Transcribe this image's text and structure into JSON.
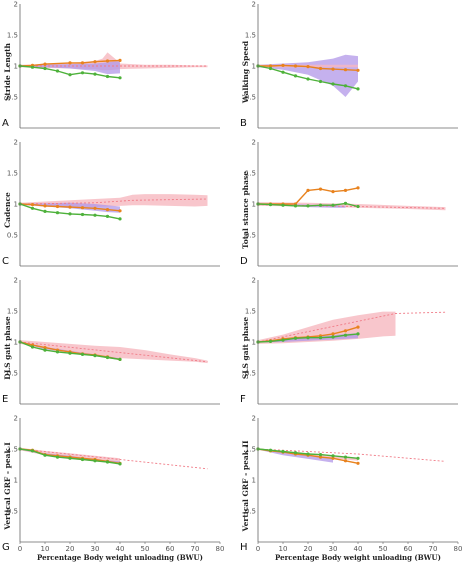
{
  "colors": {
    "orange": "#e8821e",
    "green": "#4db13a",
    "pink_band": "#f6b8bf",
    "purple_band": "#b197e8",
    "dashed": "#f07a86",
    "axis": "#666666"
  },
  "chart_data": [
    {
      "type": "line",
      "panel_label": "A",
      "ylabel": "Stride Length",
      "ylim": [
        0,
        2
      ],
      "xlim": [
        0,
        80
      ],
      "yticks": [
        "0",
        "0.5",
        "1",
        "1.5",
        "2"
      ],
      "xticks": [],
      "bands": [
        {
          "color": "pink",
          "x": [
            0,
            10,
            20,
            30,
            33,
            35,
            38,
            40,
            50,
            60,
            70,
            75
          ],
          "upper": [
            1.02,
            1.03,
            1.05,
            1.08,
            1.12,
            1.22,
            1.12,
            1.04,
            1.02,
            1.02,
            1.01,
            1.01
          ],
          "lower": [
            0.98,
            0.97,
            0.96,
            0.95,
            0.93,
            0.93,
            0.94,
            0.95,
            0.96,
            0.97,
            0.98,
            0.98
          ]
        },
        {
          "color": "purple",
          "x": [
            0,
            10,
            20,
            30,
            35,
            40
          ],
          "upper": [
            1.01,
            1.02,
            1.03,
            1.04,
            1.06,
            1.08
          ],
          "lower": [
            0.99,
            0.98,
            0.96,
            0.92,
            0.87,
            0.88
          ]
        }
      ],
      "series": [
        {
          "color": "orange",
          "x": [
            0,
            5,
            10,
            20,
            25,
            30,
            35,
            40
          ],
          "values": [
            1.0,
            1.01,
            1.03,
            1.05,
            1.05,
            1.07,
            1.08,
            1.09
          ]
        },
        {
          "color": "green",
          "x": [
            0,
            5,
            10,
            15,
            20,
            25,
            30,
            35,
            40
          ],
          "values": [
            1.0,
            0.98,
            0.96,
            0.92,
            0.86,
            0.89,
            0.87,
            0.83,
            0.81
          ]
        }
      ],
      "dashed": {
        "x": [
          0,
          75
        ],
        "values": [
          1.0,
          1.0
        ]
      }
    },
    {
      "type": "line",
      "panel_label": "B",
      "ylabel": "Walking Speed",
      "ylim": [
        0,
        2
      ],
      "xlim": [
        0,
        80
      ],
      "yticks": [
        "0",
        "0.5",
        "1",
        "1.5",
        "2"
      ],
      "xticks": [],
      "bands": [
        {
          "color": "purple",
          "x": [
            0,
            10,
            20,
            30,
            35,
            40
          ],
          "upper": [
            1.02,
            1.04,
            1.06,
            1.12,
            1.18,
            1.16
          ],
          "lower": [
            0.98,
            0.94,
            0.86,
            0.68,
            0.5,
            0.75
          ]
        },
        {
          "color": "pink",
          "x": [
            0,
            10,
            20,
            30,
            40
          ],
          "upper": [
            1.02,
            1.02,
            1.02,
            1.02,
            1.02
          ],
          "lower": [
            0.98,
            0.98,
            0.98,
            0.98,
            0.98
          ]
        }
      ],
      "series": [
        {
          "color": "orange",
          "x": [
            0,
            5,
            10,
            15,
            20,
            25,
            30,
            35,
            40
          ],
          "values": [
            1.0,
            1.0,
            1.01,
            1.0,
            0.99,
            0.96,
            0.95,
            0.94,
            0.93
          ]
        },
        {
          "color": "green",
          "x": [
            0,
            5,
            10,
            15,
            20,
            25,
            30,
            35,
            40
          ],
          "values": [
            1.0,
            0.96,
            0.9,
            0.84,
            0.79,
            0.75,
            0.71,
            0.68,
            0.63
          ]
        }
      ],
      "dashed": null
    },
    {
      "type": "line",
      "panel_label": "C",
      "ylabel": "Cadence",
      "ylim": [
        0,
        2
      ],
      "xlim": [
        0,
        80
      ],
      "yticks": [
        "0",
        "0.5",
        "1",
        "1.5",
        "2"
      ],
      "xticks": [],
      "bands": [
        {
          "color": "pink",
          "x": [
            0,
            10,
            20,
            30,
            40,
            45,
            50,
            60,
            70,
            75
          ],
          "upper": [
            1.02,
            1.04,
            1.06,
            1.08,
            1.1,
            1.15,
            1.16,
            1.16,
            1.15,
            1.14
          ],
          "lower": [
            0.98,
            0.96,
            0.95,
            0.95,
            0.97,
            0.98,
            0.98,
            0.97,
            0.96,
            0.97
          ]
        },
        {
          "color": "purple",
          "x": [
            0,
            10,
            20,
            30,
            35,
            40
          ],
          "upper": [
            1.01,
            1.01,
            1.02,
            1.0,
            0.98,
            0.96
          ],
          "lower": [
            0.99,
            0.96,
            0.93,
            0.89,
            0.87,
            0.86
          ]
        }
      ],
      "series": [
        {
          "color": "orange",
          "x": [
            0,
            5,
            10,
            15,
            20,
            25,
            30,
            35,
            40
          ],
          "values": [
            1.0,
            0.99,
            0.97,
            0.96,
            0.95,
            0.94,
            0.93,
            0.91,
            0.89
          ]
        },
        {
          "color": "green",
          "x": [
            0,
            5,
            10,
            15,
            20,
            25,
            30,
            35,
            40
          ],
          "values": [
            1.0,
            0.93,
            0.88,
            0.86,
            0.84,
            0.83,
            0.82,
            0.8,
            0.76
          ]
        }
      ],
      "dashed": {
        "x": [
          0,
          30,
          45,
          75
        ],
        "values": [
          1.0,
          1.02,
          1.06,
          1.08
        ]
      }
    },
    {
      "type": "line",
      "panel_label": "D",
      "ylabel": "Total stance phase",
      "ylim": [
        0,
        2
      ],
      "xlim": [
        0,
        80
      ],
      "yticks": [
        "0",
        "0.5",
        "1",
        "1.5",
        "2"
      ],
      "xticks": [],
      "bands": [
        {
          "color": "pink",
          "x": [
            0,
            20,
            40,
            60,
            75
          ],
          "upper": [
            1.03,
            1.02,
            1.0,
            0.97,
            0.95
          ],
          "lower": [
            0.97,
            0.96,
            0.94,
            0.92,
            0.9
          ]
        },
        {
          "color": "purple",
          "x": [
            0,
            10,
            20,
            30,
            35
          ],
          "upper": [
            1.01,
            1.0,
            0.99,
            0.98,
            0.97
          ],
          "lower": [
            0.99,
            0.98,
            0.95,
            0.94,
            0.94
          ]
        }
      ],
      "series": [
        {
          "color": "orange",
          "x": [
            0,
            5,
            10,
            15,
            20,
            25,
            30,
            35,
            40
          ],
          "values": [
            1.0,
            1.0,
            1.0,
            1.0,
            1.22,
            1.24,
            1.2,
            1.22,
            1.26
          ]
        },
        {
          "color": "green",
          "x": [
            0,
            5,
            10,
            15,
            20,
            25,
            30,
            35,
            40
          ],
          "values": [
            1.0,
            0.99,
            0.98,
            0.97,
            0.97,
            0.98,
            0.98,
            1.01,
            0.96
          ]
        }
      ],
      "dashed": {
        "x": [
          0,
          75
        ],
        "values": [
          0.99,
          0.93
        ]
      }
    },
    {
      "type": "line",
      "panel_label": "E",
      "ylabel": "DLS gait phase",
      "ylim": [
        0,
        2
      ],
      "xlim": [
        0,
        80
      ],
      "yticks": [
        "0",
        "0.5",
        "1",
        "1.5",
        "2"
      ],
      "xticks": [],
      "bands": [
        {
          "color": "pink",
          "x": [
            0,
            10,
            20,
            30,
            40,
            50,
            60,
            70,
            75
          ],
          "upper": [
            1.03,
            1.0,
            0.97,
            0.94,
            0.92,
            0.87,
            0.8,
            0.74,
            0.7
          ],
          "lower": [
            0.97,
            0.9,
            0.85,
            0.8,
            0.74,
            0.72,
            0.7,
            0.68,
            0.66
          ]
        },
        {
          "color": "purple",
          "x": [
            0,
            10,
            20,
            30,
            40
          ],
          "upper": [
            1.01,
            0.92,
            0.86,
            0.8,
            0.74
          ],
          "lower": [
            0.99,
            0.88,
            0.83,
            0.77,
            0.71
          ]
        }
      ],
      "series": [
        {
          "color": "orange",
          "x": [
            0,
            5,
            10,
            15,
            20,
            25,
            30,
            35,
            40
          ],
          "values": [
            1.0,
            0.95,
            0.91,
            0.87,
            0.84,
            0.81,
            0.79,
            0.76,
            0.72
          ]
        },
        {
          "color": "green",
          "x": [
            0,
            5,
            10,
            15,
            20,
            25,
            30,
            35,
            40
          ],
          "values": [
            1.0,
            0.92,
            0.87,
            0.84,
            0.82,
            0.8,
            0.78,
            0.75,
            0.72
          ]
        }
      ],
      "dashed": {
        "x": [
          0,
          75
        ],
        "values": [
          1.0,
          0.68
        ]
      }
    },
    {
      "type": "line",
      "panel_label": "F",
      "ylabel": "SLS gait phase",
      "ylim": [
        0,
        2
      ],
      "xlim": [
        0,
        80
      ],
      "yticks": [
        "0",
        "0.5",
        "1",
        "1.5",
        "2"
      ],
      "xticks": [],
      "bands": [
        {
          "color": "pink",
          "x": [
            0,
            10,
            20,
            30,
            40,
            50,
            55
          ],
          "upper": [
            1.03,
            1.12,
            1.24,
            1.36,
            1.43,
            1.49,
            1.49
          ],
          "lower": [
            0.97,
            0.98,
            1.0,
            1.02,
            1.05,
            1.09,
            1.1
          ]
        },
        {
          "color": "purple",
          "x": [
            0,
            10,
            20,
            30,
            35,
            40
          ],
          "upper": [
            1.01,
            1.05,
            1.08,
            1.11,
            1.13,
            1.14
          ],
          "lower": [
            0.99,
            1.0,
            1.02,
            1.04,
            1.05,
            1.06
          ]
        }
      ],
      "series": [
        {
          "color": "orange",
          "x": [
            0,
            5,
            10,
            15,
            20,
            25,
            30,
            35,
            40
          ],
          "values": [
            1.0,
            1.02,
            1.05,
            1.07,
            1.08,
            1.1,
            1.13,
            1.18,
            1.24
          ]
        },
        {
          "color": "green",
          "x": [
            0,
            5,
            10,
            15,
            20,
            25,
            30,
            35,
            40
          ],
          "values": [
            1.0,
            1.01,
            1.03,
            1.06,
            1.07,
            1.07,
            1.08,
            1.11,
            1.13
          ]
        }
      ],
      "dashed": {
        "x": [
          0,
          55,
          75
        ],
        "values": [
          1.0,
          1.46,
          1.48
        ]
      }
    },
    {
      "type": "line",
      "panel_label": "G",
      "ylabel": "Vertical GRF - peak I",
      "ylim": [
        0,
        2
      ],
      "xlim": [
        0,
        80
      ],
      "yticks": [
        "0",
        "0.5",
        "1",
        "1.5",
        "2"
      ],
      "xticks": [
        "0",
        "10",
        "20",
        "30",
        "40",
        "50",
        "60",
        "70",
        "80"
      ],
      "xlabel": "Percentage Body weight unloading (BWU)",
      "bands": [
        {
          "color": "pink",
          "x": [
            0,
            10,
            20,
            30,
            40
          ],
          "upper": [
            1.52,
            1.47,
            1.43,
            1.39,
            1.35
          ],
          "lower": [
            1.48,
            1.4,
            1.34,
            1.3,
            1.26
          ]
        },
        {
          "color": "purple",
          "x": [
            0,
            10,
            20,
            30,
            40
          ],
          "upper": [
            1.5,
            1.43,
            1.39,
            1.33,
            1.3
          ],
          "lower": [
            1.49,
            1.41,
            1.36,
            1.31,
            1.27
          ]
        }
      ],
      "series": [
        {
          "color": "orange",
          "x": [
            0,
            5,
            10,
            15,
            20,
            25,
            30,
            35,
            40
          ],
          "values": [
            1.5,
            1.48,
            1.41,
            1.39,
            1.37,
            1.35,
            1.33,
            1.3,
            1.27
          ]
        },
        {
          "color": "green",
          "x": [
            0,
            5,
            10,
            15,
            20,
            25,
            30,
            35,
            40
          ],
          "values": [
            1.5,
            1.47,
            1.4,
            1.37,
            1.35,
            1.33,
            1.31,
            1.29,
            1.26
          ]
        }
      ],
      "dashed": {
        "x": [
          0,
          40,
          75
        ],
        "values": [
          1.5,
          1.33,
          1.18
        ]
      }
    },
    {
      "type": "line",
      "panel_label": "H",
      "ylabel": "Vertical GRF - peak II",
      "ylim": [
        0,
        2
      ],
      "xlim": [
        0,
        80
      ],
      "yticks": [
        "0",
        "0.5",
        "1",
        "1.5",
        "2"
      ],
      "xticks": [
        "0",
        "10",
        "20",
        "30",
        "40",
        "50",
        "60",
        "70",
        "80"
      ],
      "xlabel": "Percentage Body weight unloading (BWU)",
      "bands": [
        {
          "color": "purple",
          "x": [
            0,
            10,
            20,
            30
          ],
          "upper": [
            1.5,
            1.45,
            1.4,
            1.35
          ],
          "lower": [
            1.49,
            1.4,
            1.34,
            1.28
          ]
        },
        {
          "color": "pink",
          "x": [
            0,
            10,
            20,
            30,
            40
          ],
          "upper": [
            1.51,
            1.46,
            1.42,
            1.38,
            1.34
          ],
          "lower": [
            1.49,
            1.44,
            1.39,
            1.35,
            1.31
          ]
        }
      ],
      "series": [
        {
          "color": "orange",
          "x": [
            0,
            5,
            10,
            15,
            20,
            25,
            30,
            35,
            40
          ],
          "values": [
            1.5,
            1.47,
            1.45,
            1.42,
            1.4,
            1.37,
            1.35,
            1.31,
            1.27
          ]
        },
        {
          "color": "green",
          "x": [
            0,
            5,
            10,
            15,
            20,
            25,
            30,
            35,
            40
          ],
          "values": [
            1.5,
            1.48,
            1.46,
            1.44,
            1.42,
            1.41,
            1.39,
            1.37,
            1.35
          ]
        }
      ],
      "dashed": {
        "x": [
          0,
          40,
          75
        ],
        "values": [
          1.5,
          1.42,
          1.3
        ]
      }
    }
  ]
}
